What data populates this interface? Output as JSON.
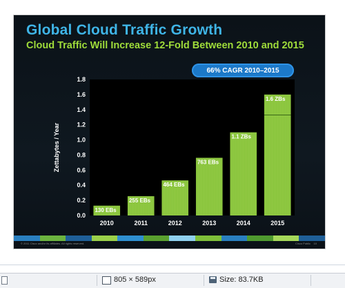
{
  "slide": {
    "title": "Global Cloud Traffic Growth",
    "subtitle": "Cloud Traffic Will Increase 12-Fold Between 2010 and 2015",
    "cagr_badge": "66% CAGR 2010–2015",
    "footer_left": "© 2011 Cisco and/or its affiliates. All rights reserved.",
    "footer_right": "Cisco Public",
    "page_number": "10"
  },
  "chart_data": {
    "type": "bar",
    "categories": [
      "2010",
      "2011",
      "2012",
      "2013",
      "2014",
      "2015"
    ],
    "values": [
      0.13,
      0.255,
      0.464,
      0.763,
      1.1,
      1.6
    ],
    "data_labels": [
      "130 EBs",
      "255 EBs",
      "464 EBs",
      "763 EBs",
      "1.1 ZBs",
      "1.6 ZBs"
    ],
    "ylabel": "Zettabytes / Year",
    "xlabel": "",
    "ylim": [
      0,
      1.8
    ],
    "yticks": [
      "0.0",
      "0.2",
      "0.4",
      "0.6",
      "0.8",
      "1.0",
      "1.2",
      "1.4",
      "1.6",
      "1.8"
    ],
    "grid": false,
    "bar_color": "#8cc63f",
    "plot_background": "#000000"
  },
  "colors": {
    "title": "#3fb4e6",
    "subtitle": "#9fdc3a",
    "badge": "#1c79c9",
    "footer_strip": [
      "#2a7fc0",
      "#6cb33f",
      "#1f5f98",
      "#9bd04a",
      "#2f8fd0",
      "#5aa02f",
      "#8fd0ef",
      "#7fbf3a",
      "#2a7fc0",
      "#4f9a2f",
      "#a6d85a",
      "#1f5f98"
    ]
  },
  "statusbar": {
    "dimensions": "805 × 589px",
    "size": "Size: 83.7KB"
  }
}
